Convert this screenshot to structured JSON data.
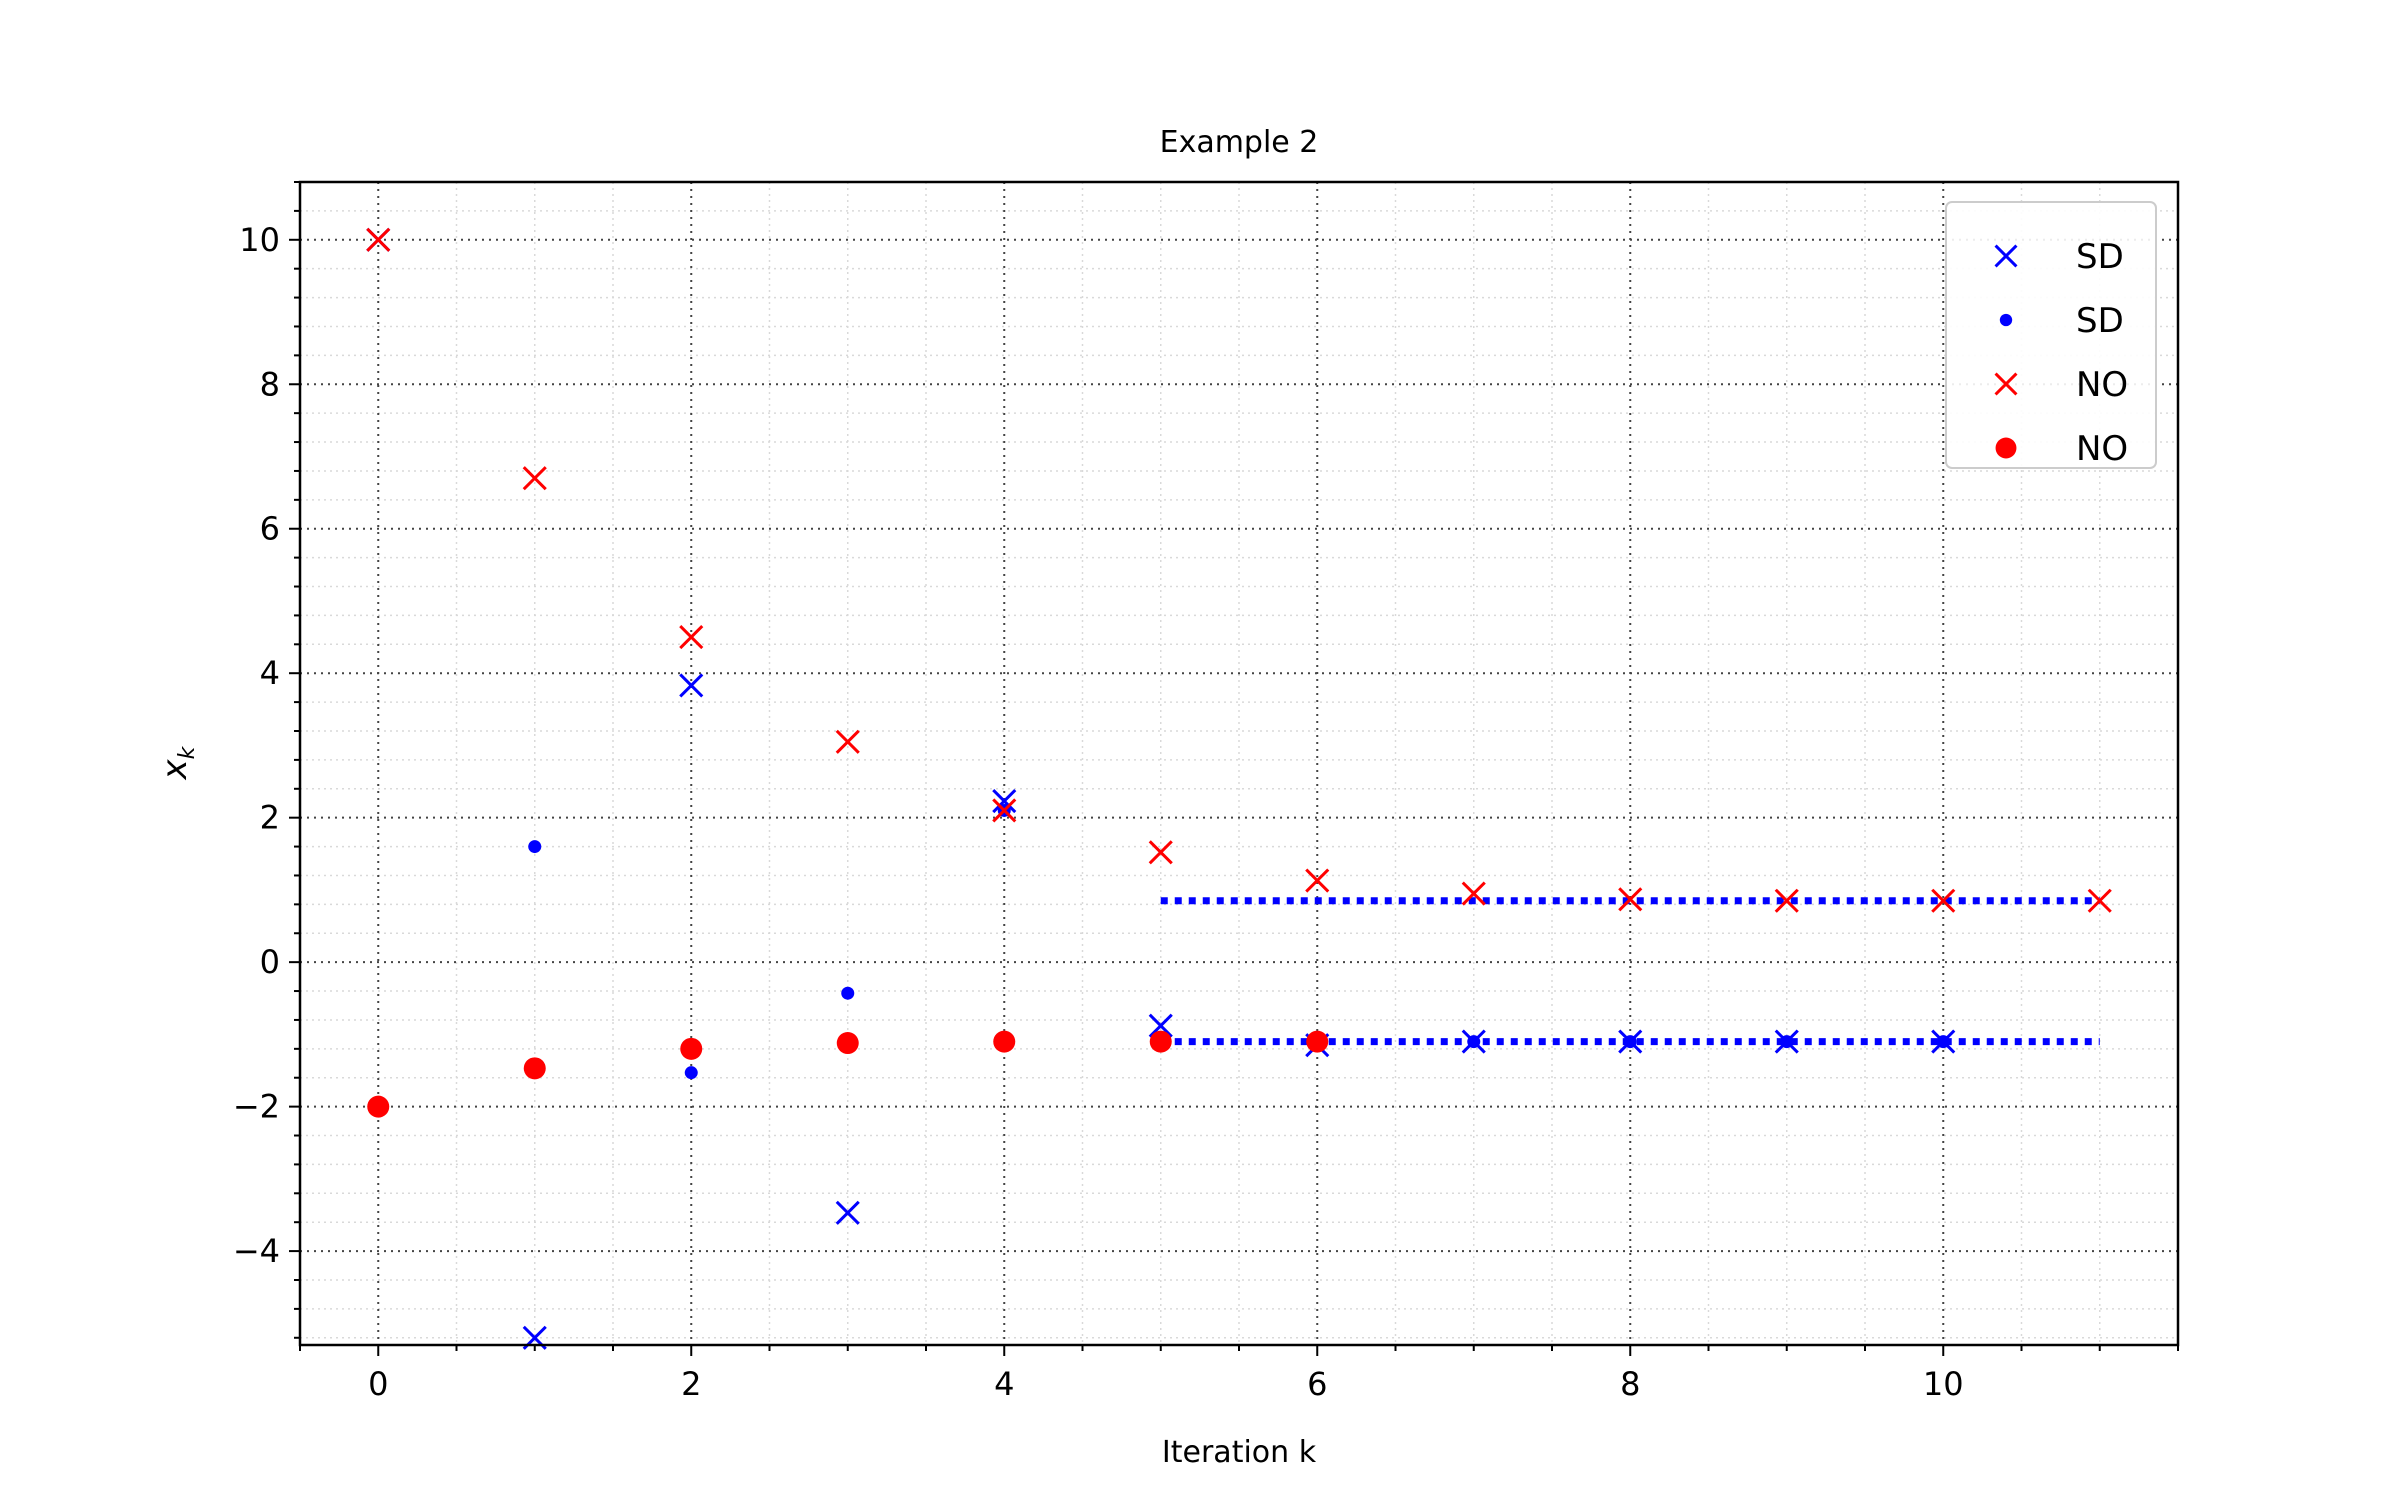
{
  "chart_data": {
    "type": "scatter",
    "title": "Example 2",
    "xlabel": "Iteration k",
    "ylabel": {
      "base": "x",
      "sub": "k"
    },
    "xlim": [
      -0.5,
      11.5
    ],
    "ylim": [
      -5.3,
      10.8
    ],
    "xticks": [
      0,
      2,
      4,
      6,
      8,
      10
    ],
    "xtick_labels": [
      "0",
      "2",
      "4",
      "6",
      "8",
      "10"
    ],
    "yticks": [
      -4,
      -2,
      0,
      2,
      4,
      6,
      8,
      10
    ],
    "ytick_labels": [
      "−4",
      "−2",
      "0",
      "2",
      "4",
      "6",
      "8",
      "10"
    ],
    "grid": true,
    "minor_grid": true,
    "legend_position": "top-right",
    "series": [
      {
        "name": "SD",
        "marker": "x",
        "color": "#0000ff",
        "points": [
          [
            0,
            10
          ],
          [
            1,
            -5.2
          ],
          [
            2,
            3.83
          ],
          [
            3,
            -3.47
          ],
          [
            4,
            2.23
          ],
          [
            5,
            -0.88
          ],
          [
            6,
            -1.15
          ],
          [
            7,
            -1.1
          ],
          [
            8,
            -1.1
          ],
          [
            9,
            -1.1
          ],
          [
            10,
            -1.1
          ]
        ]
      },
      {
        "name": "SD",
        "marker": "dot-small",
        "color": "#0000ff",
        "points": [
          [
            0,
            -2
          ],
          [
            1,
            1.6
          ],
          [
            2,
            -1.53
          ],
          [
            3,
            -0.43
          ],
          [
            4,
            2.1
          ],
          [
            5,
            -1.1
          ],
          [
            6,
            -1.1
          ],
          [
            7,
            -1.1
          ],
          [
            8,
            -1.1
          ],
          [
            9,
            -1.1
          ],
          [
            10,
            -1.1
          ]
        ]
      },
      {
        "name": "NO",
        "marker": "x",
        "color": "#ff0000",
        "points": [
          [
            0,
            10
          ],
          [
            1,
            6.7
          ],
          [
            2,
            4.5
          ],
          [
            3,
            3.05
          ],
          [
            4,
            2.1
          ],
          [
            5,
            1.52
          ],
          [
            6,
            1.13
          ],
          [
            7,
            0.95
          ],
          [
            8,
            0.87
          ],
          [
            9,
            0.85
          ],
          [
            10,
            0.85
          ],
          [
            11,
            0.85
          ]
        ]
      },
      {
        "name": "NO",
        "marker": "dot",
        "color": "#ff0000",
        "points": [
          [
            0,
            -2
          ],
          [
            1,
            -1.47
          ],
          [
            2,
            -1.2
          ],
          [
            3,
            -1.12
          ],
          [
            4,
            -1.1
          ],
          [
            5,
            -1.1
          ],
          [
            6,
            -1.1
          ]
        ]
      }
    ],
    "reference_lines": [
      {
        "y": 0.85,
        "x": [
          5,
          11
        ],
        "color": "#0000ff",
        "style": "dotted"
      },
      {
        "y": -1.1,
        "x": [
          5,
          11
        ],
        "color": "#0000ff",
        "style": "dotted"
      }
    ]
  }
}
